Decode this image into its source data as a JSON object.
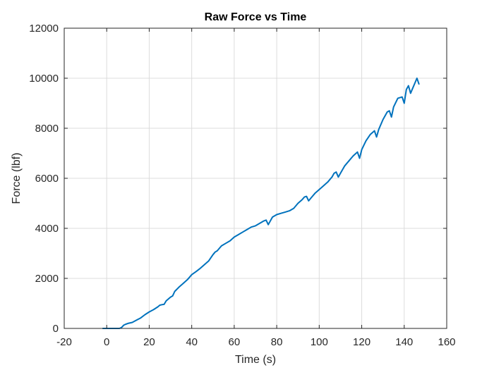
{
  "chart_data": {
    "type": "line",
    "title": "Raw Force vs Time",
    "xlabel": "Time (s)",
    "ylabel": "Force (lbf)",
    "xlim": [
      -20,
      160
    ],
    "ylim": [
      0,
      12000
    ],
    "xticks": [
      -20,
      0,
      20,
      40,
      60,
      80,
      100,
      120,
      140,
      160
    ],
    "yticks": [
      0,
      2000,
      4000,
      6000,
      8000,
      10000,
      12000
    ],
    "grid": true,
    "legend": "none",
    "series": [
      {
        "color": "#0072BD",
        "points": [
          [
            -2,
            0
          ],
          [
            0,
            0
          ],
          [
            3,
            0
          ],
          [
            6,
            0
          ],
          [
            7,
            40
          ],
          [
            8,
            130
          ],
          [
            9,
            170
          ],
          [
            10,
            200
          ],
          [
            12,
            240
          ],
          [
            14,
            330
          ],
          [
            16,
            420
          ],
          [
            18,
            550
          ],
          [
            20,
            660
          ],
          [
            22,
            750
          ],
          [
            24,
            860
          ],
          [
            25,
            930
          ],
          [
            26,
            950
          ],
          [
            27,
            960
          ],
          [
            28,
            1100
          ],
          [
            30,
            1250
          ],
          [
            31,
            1300
          ],
          [
            32,
            1480
          ],
          [
            34,
            1650
          ],
          [
            36,
            1800
          ],
          [
            38,
            1950
          ],
          [
            40,
            2150
          ],
          [
            42,
            2270
          ],
          [
            44,
            2400
          ],
          [
            46,
            2550
          ],
          [
            48,
            2700
          ],
          [
            50,
            2950
          ],
          [
            51,
            3050
          ],
          [
            52,
            3100
          ],
          [
            54,
            3300
          ],
          [
            56,
            3400
          ],
          [
            58,
            3500
          ],
          [
            60,
            3650
          ],
          [
            62,
            3750
          ],
          [
            64,
            3850
          ],
          [
            66,
            3950
          ],
          [
            68,
            4050
          ],
          [
            70,
            4100
          ],
          [
            72,
            4200
          ],
          [
            74,
            4300
          ],
          [
            75,
            4330
          ],
          [
            76,
            4150
          ],
          [
            77,
            4300
          ],
          [
            78,
            4450
          ],
          [
            80,
            4550
          ],
          [
            82,
            4600
          ],
          [
            84,
            4650
          ],
          [
            86,
            4700
          ],
          [
            88,
            4800
          ],
          [
            90,
            5000
          ],
          [
            92,
            5150
          ],
          [
            93,
            5250
          ],
          [
            94,
            5280
          ],
          [
            95,
            5100
          ],
          [
            96,
            5200
          ],
          [
            98,
            5400
          ],
          [
            100,
            5550
          ],
          [
            102,
            5700
          ],
          [
            104,
            5850
          ],
          [
            106,
            6050
          ],
          [
            107,
            6200
          ],
          [
            108,
            6250
          ],
          [
            109,
            6050
          ],
          [
            110,
            6200
          ],
          [
            112,
            6500
          ],
          [
            114,
            6700
          ],
          [
            116,
            6900
          ],
          [
            118,
            7050
          ],
          [
            119,
            6800
          ],
          [
            120,
            7150
          ],
          [
            122,
            7500
          ],
          [
            124,
            7750
          ],
          [
            126,
            7900
          ],
          [
            127,
            7650
          ],
          [
            128,
            7950
          ],
          [
            130,
            8350
          ],
          [
            132,
            8650
          ],
          [
            133,
            8700
          ],
          [
            134,
            8450
          ],
          [
            135,
            8850
          ],
          [
            137,
            9200
          ],
          [
            139,
            9250
          ],
          [
            140,
            9000
          ],
          [
            141,
            9550
          ],
          [
            142,
            9700
          ],
          [
            143,
            9400
          ],
          [
            144,
            9600
          ],
          [
            145,
            9800
          ],
          [
            146,
            10000
          ],
          [
            147,
            9750
          ]
        ]
      }
    ]
  }
}
